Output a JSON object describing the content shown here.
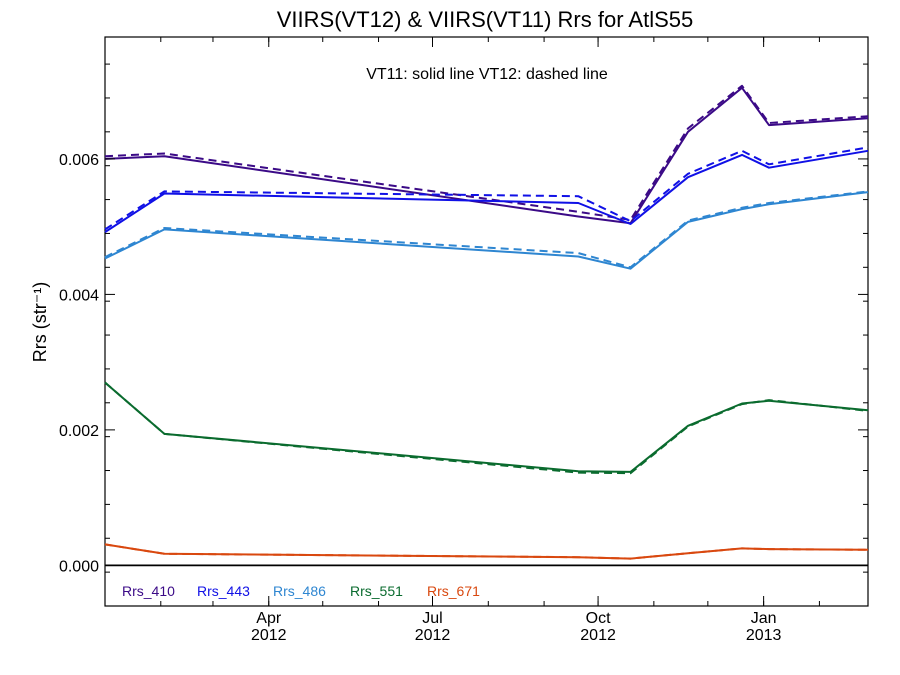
{
  "chart_data": {
    "type": "line",
    "title": "VIIRS(VT12) & VIIRS(VT11)  Rrs for AtlS55",
    "ylabel": "Rrs (str⁻¹)",
    "xlabel": "",
    "annotation": "VT11: solid line   VT12: dashed line",
    "xlim": [
      "2012-01-01",
      "2013-02-28"
    ],
    "ylim": [
      -0.0006,
      0.0078
    ],
    "y_ticks": [
      0.0,
      0.002,
      0.004,
      0.006
    ],
    "y_tick_labels": [
      "0.000",
      "0.002",
      "0.004",
      "0.006"
    ],
    "x_ticks": [
      {
        "date": "2012-04-01",
        "month": "Apr",
        "year": "2012"
      },
      {
        "date": "2012-07-01",
        "month": "Jul",
        "year": "2012"
      },
      {
        "date": "2012-10-01",
        "month": "Oct",
        "year": "2012"
      },
      {
        "date": "2013-01-01",
        "month": "Jan",
        "year": "2013"
      }
    ],
    "zero_line": true,
    "grid": false,
    "legend_placement": "bottom-left",
    "series": [
      {
        "name": "Rrs_410",
        "color": "#3b0a87",
        "style": "solid",
        "x": [
          "2012-01-01",
          "2012-02-03",
          "2012-09-20",
          "2012-10-19",
          "2012-11-20",
          "2012-12-20",
          "2013-01-04",
          "2013-02-28"
        ],
        "y": [
          0.006,
          0.00604,
          0.00515,
          0.00505,
          0.0064,
          0.00705,
          0.0065,
          0.0066
        ]
      },
      {
        "name": "Rrs_410",
        "color": "#3b0a87",
        "style": "dashed",
        "x": [
          "2012-01-01",
          "2012-02-03",
          "2012-09-20",
          "2012-10-19",
          "2012-11-20",
          "2012-12-20",
          "2013-01-04",
          "2013-02-28"
        ],
        "y": [
          0.00604,
          0.00608,
          0.00522,
          0.0051,
          0.00645,
          0.00708,
          0.00653,
          0.00663
        ]
      },
      {
        "name": "Rrs_443",
        "color": "#1010e6",
        "style": "solid",
        "x": [
          "2012-01-01",
          "2012-02-03",
          "2012-09-20",
          "2012-10-19",
          "2012-11-20",
          "2012-12-20",
          "2013-01-04",
          "2013-02-28"
        ],
        "y": [
          0.00492,
          0.00549,
          0.00535,
          0.00504,
          0.00573,
          0.00606,
          0.00587,
          0.00612
        ]
      },
      {
        "name": "Rrs_443",
        "color": "#1010e6",
        "style": "dashed",
        "x": [
          "2012-01-01",
          "2012-02-03",
          "2012-09-20",
          "2012-10-19",
          "2012-11-20",
          "2012-12-20",
          "2013-01-04",
          "2013-02-28"
        ],
        "y": [
          0.00496,
          0.00552,
          0.00545,
          0.00508,
          0.00578,
          0.00612,
          0.00592,
          0.00617
        ]
      },
      {
        "name": "Rrs_486",
        "color": "#2e86d1",
        "style": "solid",
        "x": [
          "2012-01-01",
          "2012-02-03",
          "2012-09-20",
          "2012-10-19",
          "2012-11-20",
          "2012-12-20",
          "2013-01-04",
          "2013-02-28"
        ],
        "y": [
          0.00453,
          0.00496,
          0.00456,
          0.00438,
          0.00507,
          0.00526,
          0.00533,
          0.00551
        ]
      },
      {
        "name": "Rrs_486",
        "color": "#2e86d1",
        "style": "dashed",
        "x": [
          "2012-01-01",
          "2012-02-03",
          "2012-09-20",
          "2012-10-19",
          "2012-11-20",
          "2012-12-20",
          "2013-01-04",
          "2013-02-28"
        ],
        "y": [
          0.00455,
          0.00498,
          0.00461,
          0.0044,
          0.00509,
          0.00528,
          0.00535,
          0.00552
        ]
      },
      {
        "name": "Rrs_551",
        "color": "#0a6b2e",
        "style": "solid",
        "x": [
          "2012-01-01",
          "2012-02-03",
          "2012-09-20",
          "2012-10-19",
          "2012-11-20",
          "2012-12-20",
          "2013-01-04",
          "2013-02-28"
        ],
        "y": [
          0.0027,
          0.00194,
          0.00139,
          0.00138,
          0.00206,
          0.00239,
          0.00243,
          0.00229
        ]
      },
      {
        "name": "Rrs_551",
        "color": "#0a6b2e",
        "style": "dashed",
        "x": [
          "2012-01-01",
          "2012-02-03",
          "2012-09-20",
          "2012-10-19",
          "2012-11-20",
          "2012-12-20",
          "2013-01-04",
          "2013-02-28"
        ],
        "y": [
          0.0027,
          0.00194,
          0.00137,
          0.00136,
          0.00205,
          0.00238,
          0.00244,
          0.00228
        ]
      },
      {
        "name": "Rrs_671",
        "color": "#d9480f",
        "style": "solid",
        "x": [
          "2012-01-01",
          "2012-02-03",
          "2012-09-20",
          "2012-10-19",
          "2012-11-20",
          "2012-12-20",
          "2013-01-04",
          "2013-02-28"
        ],
        "y": [
          0.00031,
          0.00017,
          0.00012,
          0.0001,
          0.00018,
          0.00025,
          0.00024,
          0.00023
        ]
      },
      {
        "name": "Rrs_671",
        "color": "#d9480f",
        "style": "dashed",
        "x": [
          "2012-01-01",
          "2012-02-03",
          "2012-09-20",
          "2012-10-19",
          "2012-11-20",
          "2012-12-20",
          "2013-01-04",
          "2013-02-28"
        ],
        "y": [
          0.00031,
          0.00017,
          0.00012,
          0.0001,
          0.00018,
          0.00025,
          0.00024,
          0.00023
        ]
      }
    ],
    "legend": [
      {
        "label": "Rrs_410",
        "color": "#3b0a87"
      },
      {
        "label": "Rrs_443",
        "color": "#1010e6"
      },
      {
        "label": "Rrs_486",
        "color": "#2e86d1"
      },
      {
        "label": "Rrs_551",
        "color": "#0a6b2e"
      },
      {
        "label": "Rrs_671",
        "color": "#d9480f"
      }
    ]
  }
}
